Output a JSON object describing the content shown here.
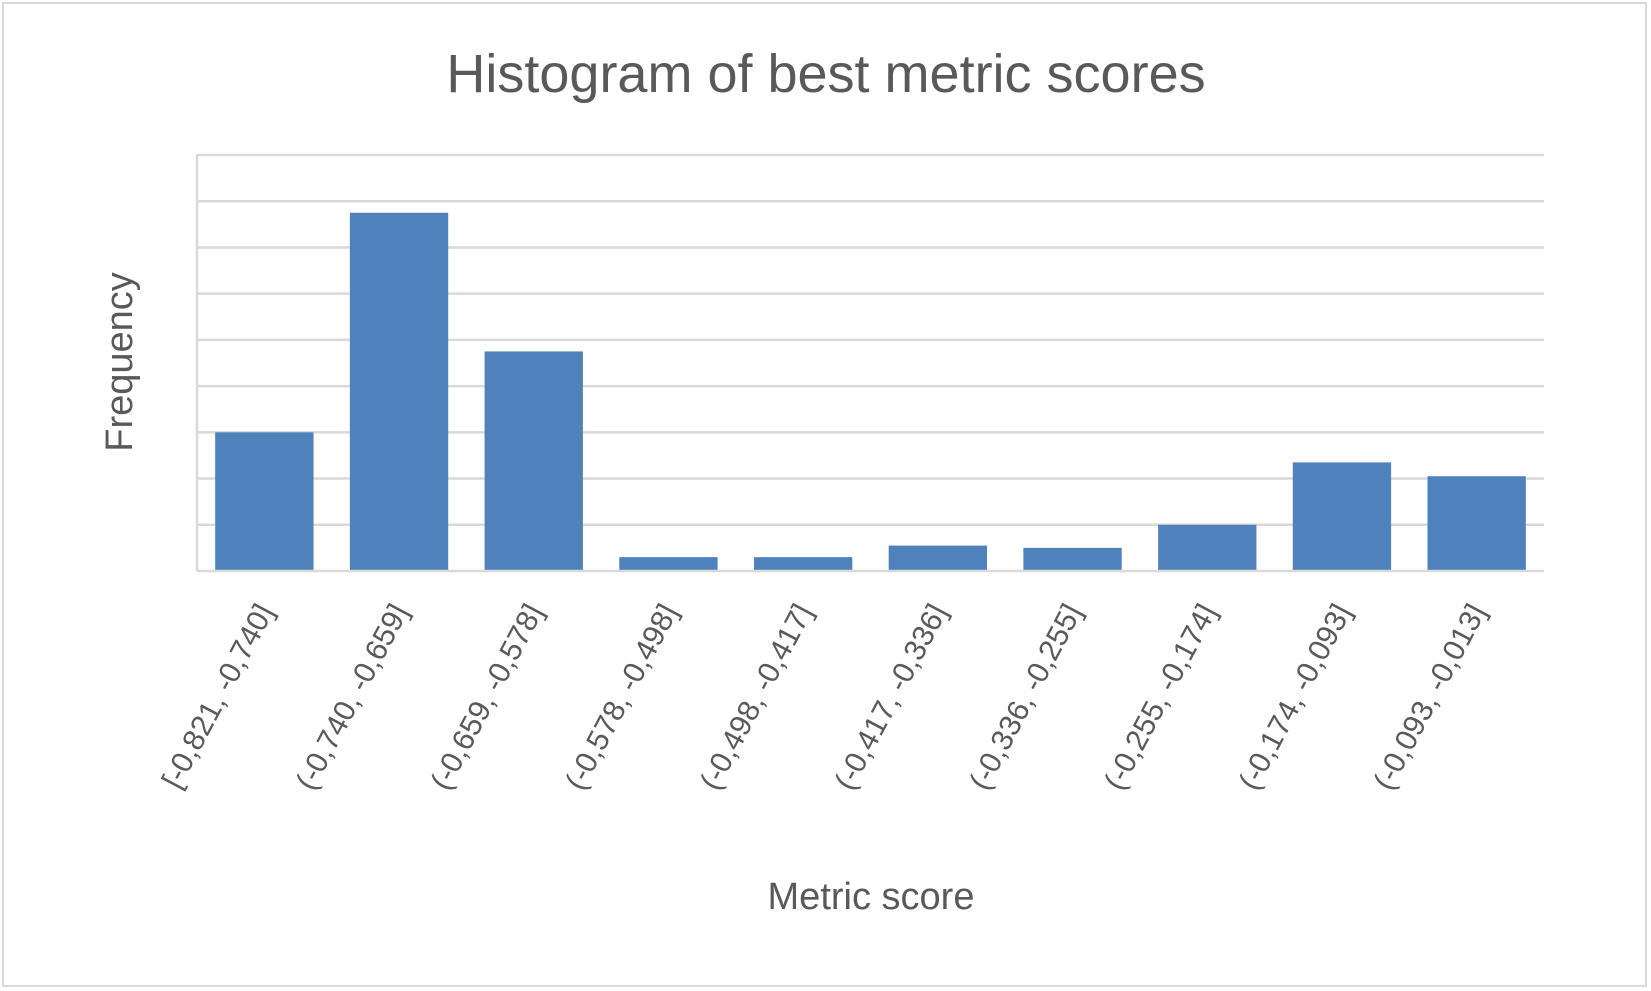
{
  "chart_data": {
    "type": "bar",
    "title": "Histogram of best metric scores",
    "xlabel": "Metric score",
    "ylabel": "Frequency",
    "categories": [
      "[-0,821, -0,740]",
      "(-0,740, -0,659]",
      "(-0,659, -0,578]",
      "(-0,578, -0,498]",
      "(-0,498, -0,417]",
      "(-0,417, -0,336]",
      "(-0,336, -0,255]",
      "(-0,255, -0,174]",
      "(-0,174, -0,093]",
      "(-0,093, -0,013]"
    ],
    "values": [
      30,
      77.5,
      47.5,
      3,
      3,
      5.5,
      5,
      10,
      23.5,
      20.5
    ],
    "ylim": [
      0,
      90
    ],
    "y_gridline_step": 10,
    "y_tick_labels_visible": false,
    "grid": true,
    "legend": "none",
    "bar_color": "#4f81bd"
  }
}
